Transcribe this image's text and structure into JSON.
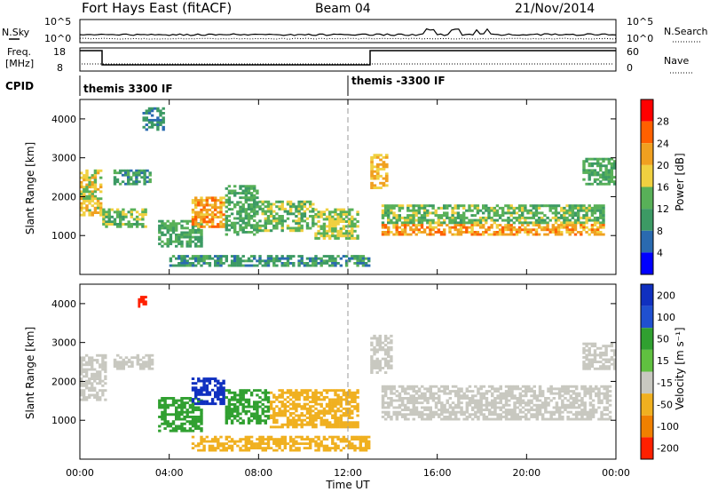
{
  "header": {
    "station": "Fort Hays East (fitACF)",
    "beam": "Beam 04",
    "date": "21/Nov/2014"
  },
  "noise_panel": {
    "left_label": "N.Sky",
    "right_label": "N.Search",
    "left_ticks": [
      "10^5",
      "10^0"
    ],
    "right_ticks": [
      "10^5",
      "10^0"
    ]
  },
  "freq_panel": {
    "left_label_1": "Freq.",
    "left_label_2": "[MHz]",
    "right_label": "Nave",
    "left_ticks": [
      "18",
      "8"
    ],
    "right_ticks": [
      "60",
      "0"
    ]
  },
  "cpid": {
    "label": "CPID",
    "segments": [
      {
        "name": "themis 3300 IF",
        "start_hour": 0
      },
      {
        "name": "themis -3300 IF",
        "start_hour": 12
      }
    ]
  },
  "colors": {
    "power": [
      "#0000ff",
      "#2a6ab0",
      "#3c9a64",
      "#58b058",
      "#f0d040",
      "#f0a020",
      "#ff6000",
      "#ff0000"
    ],
    "velocity": [
      "#1030c0",
      "#2050d0",
      "#30a030",
      "#60c040",
      "#c8c8c0",
      "#f0b020",
      "#f08000",
      "#ff2000"
    ]
  },
  "chart_data": [
    {
      "type": "heatmap",
      "name": "power",
      "ylabel": "Slant Range [km]",
      "yticks": [
        "1000",
        "2000",
        "3000",
        "4000"
      ],
      "ylim": [
        0,
        4500
      ],
      "xlim": [
        0,
        24
      ],
      "colorbar_label": "Power [dB]",
      "colorbar_ticks": [
        "4",
        "8",
        "12",
        "16",
        "20",
        "24",
        "28"
      ],
      "regions": [
        {
          "t0": 0.0,
          "t1": 1.0,
          "r0": 1500,
          "r1": 2700,
          "value": 18
        },
        {
          "t0": 1.0,
          "t1": 3.0,
          "r0": 1200,
          "r1": 1700,
          "value": 14
        },
        {
          "t0": 1.5,
          "t1": 3.2,
          "r0": 2300,
          "r1": 2700,
          "value": 10
        },
        {
          "t0": 2.8,
          "t1": 3.8,
          "r0": 3700,
          "r1": 4300,
          "value": 8
        },
        {
          "t0": 3.5,
          "t1": 5.5,
          "r0": 700,
          "r1": 1400,
          "value": 12
        },
        {
          "t0": 5.0,
          "t1": 6.5,
          "r0": 1200,
          "r1": 2000,
          "value": 22
        },
        {
          "t0": 6.5,
          "t1": 8.0,
          "r0": 1000,
          "r1": 2300,
          "value": 12
        },
        {
          "t0": 8.0,
          "t1": 10.5,
          "r0": 1100,
          "r1": 1900,
          "value": 14
        },
        {
          "t0": 10.5,
          "t1": 12.5,
          "r0": 900,
          "r1": 1700,
          "value": 16
        },
        {
          "t0": 4.0,
          "t1": 13.0,
          "r0": 200,
          "r1": 500,
          "value": 10
        },
        {
          "t0": 13.0,
          "t1": 13.8,
          "r0": 2200,
          "r1": 3100,
          "value": 20
        },
        {
          "t0": 13.5,
          "t1": 23.5,
          "r0": 1300,
          "r1": 1800,
          "value": 14
        },
        {
          "t0": 13.5,
          "t1": 23.5,
          "r0": 1000,
          "r1": 1300,
          "value": 22
        },
        {
          "t0": 22.5,
          "t1": 24.0,
          "r0": 2300,
          "r1": 3000,
          "value": 12
        }
      ]
    },
    {
      "type": "heatmap",
      "name": "velocity",
      "ylabel": "Slant Range [km]",
      "yticks": [
        "1000",
        "2000",
        "3000",
        "4000"
      ],
      "ylim": [
        0,
        4500
      ],
      "xlim": [
        0,
        24
      ],
      "xticks": [
        "00:00",
        "04:00",
        "08:00",
        "12:00",
        "16:00",
        "20:00",
        "00:00"
      ],
      "xlabel": "Time UT",
      "colorbar_label": "Velocity [m s⁻¹]",
      "colorbar_ticks": [
        "200",
        "100",
        "50",
        "15",
        "-15",
        "-50",
        "-100",
        "-200"
      ],
      "regions": [
        {
          "t0": 0.0,
          "t1": 1.2,
          "r0": 1500,
          "r1": 2700,
          "value": 0
        },
        {
          "t0": 1.5,
          "t1": 3.3,
          "r0": 2300,
          "r1": 2700,
          "value": 0
        },
        {
          "t0": 2.6,
          "t1": 3.0,
          "r0": 3900,
          "r1": 4200,
          "value": -200
        },
        {
          "t0": 3.5,
          "t1": 5.5,
          "r0": 700,
          "r1": 1600,
          "value": 50
        },
        {
          "t0": 5.0,
          "t1": 6.5,
          "r0": 1400,
          "r1": 2100,
          "value": 200
        },
        {
          "t0": 6.5,
          "t1": 8.5,
          "r0": 900,
          "r1": 1800,
          "value": 50
        },
        {
          "t0": 8.5,
          "t1": 12.5,
          "r0": 800,
          "r1": 1800,
          "value": -50
        },
        {
          "t0": 5.0,
          "t1": 13.0,
          "r0": 200,
          "r1": 600,
          "value": -30
        },
        {
          "t0": 13.0,
          "t1": 14.0,
          "r0": 2200,
          "r1": 3200,
          "value": 0
        },
        {
          "t0": 13.5,
          "t1": 23.8,
          "r0": 1000,
          "r1": 1900,
          "value": 0
        },
        {
          "t0": 22.5,
          "t1": 24.0,
          "r0": 2300,
          "r1": 3000,
          "value": 0
        }
      ]
    }
  ]
}
